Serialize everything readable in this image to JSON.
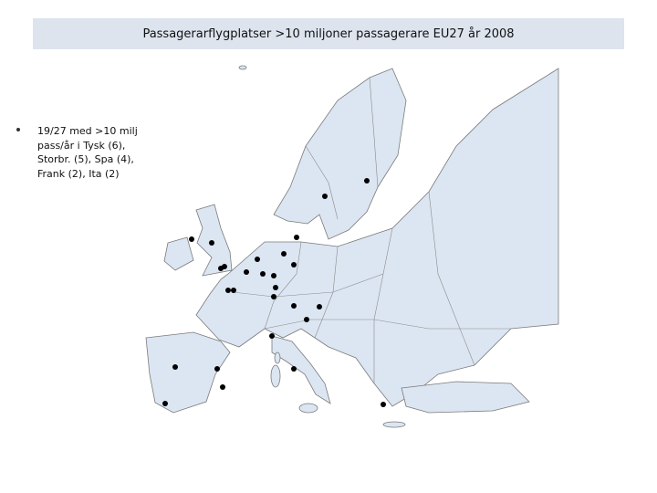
{
  "header": {
    "title": "Passagerarflygplatser >10 miljoner passagerare EU27 år 2008"
  },
  "bullet": {
    "lines": [
      "19/27 med >10 milj",
      "pass/år i Tysk (6),",
      "Storbr. (5), Spa (4),",
      "Frank (2), Ita (2)"
    ]
  }
}
